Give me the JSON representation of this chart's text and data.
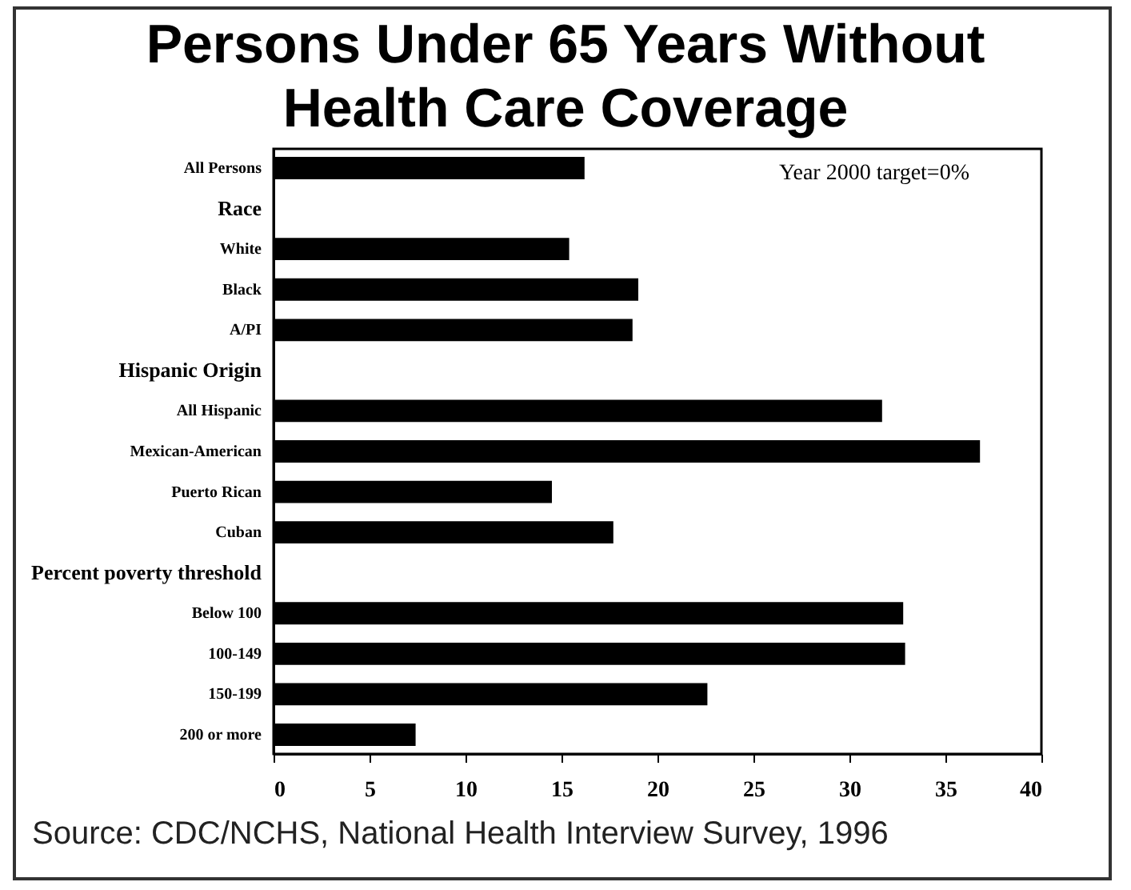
{
  "chart_data": {
    "type": "bar",
    "orientation": "horizontal",
    "title": "Persons Under 65 Years Without Health Care Coverage",
    "categories": [
      "All Persons",
      "Race",
      "White",
      "Black",
      "A/PI",
      "Hispanic Origin",
      "All Hispanic",
      "Mexican-American",
      "Puerto Rican",
      "Cuban",
      "Percent poverty threshold",
      "Below 100",
      "100-149",
      "150-199",
      "200 or more"
    ],
    "values": [
      16.2,
      null,
      15.4,
      19.0,
      18.7,
      null,
      31.7,
      36.8,
      14.5,
      17.7,
      null,
      32.8,
      32.9,
      22.6,
      7.4
    ],
    "color": "#000000",
    "xlim": [
      0,
      40
    ],
    "xticks": [
      0,
      5,
      10,
      15,
      20,
      25,
      30,
      35,
      40
    ],
    "grid": false,
    "annotations": [
      "Year 2000 target=0%",
      "Source: CDC/NCHS, National Health Interview Survey, 1996"
    ]
  }
}
